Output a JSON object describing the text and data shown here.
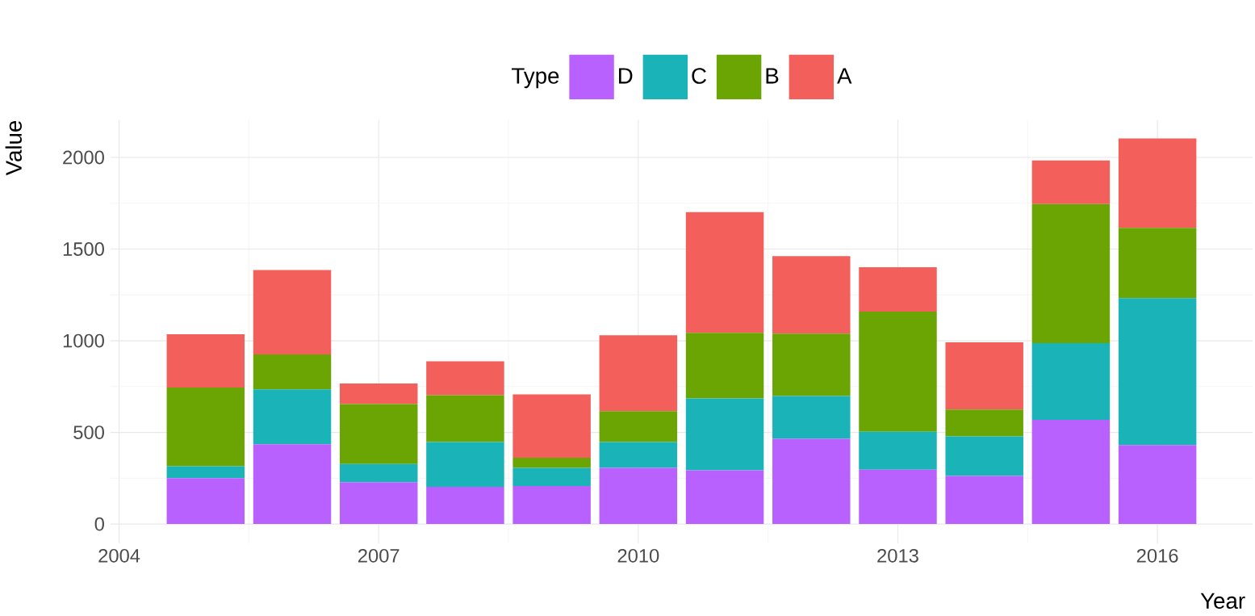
{
  "chart_data": {
    "type": "bar",
    "stacked": true,
    "xlabel": "Year",
    "ylabel": "Value",
    "legend_title": "Type",
    "legend": "top",
    "grid": true,
    "x": [
      2005,
      2006,
      2007,
      2008,
      2009,
      2010,
      2011,
      2012,
      2013,
      2014,
      2015,
      2016
    ],
    "xlim": [
      2003.9,
      2017.1
    ],
    "xticks": [
      2004,
      2007,
      2010,
      2013,
      2016
    ],
    "ylim": [
      -105,
      2205
    ],
    "yticks": [
      0,
      500,
      1000,
      1500,
      2000
    ],
    "series": [
      {
        "name": "D",
        "color": "#b961ff",
        "values": [
          250,
          435,
          228,
          203,
          207,
          306,
          293,
          465,
          297,
          263,
          569,
          431
        ]
      },
      {
        "name": "C",
        "color": "#19b3b8",
        "values": [
          65,
          300,
          100,
          245,
          99,
          142,
          392,
          233,
          207,
          215,
          418,
          802
        ]
      },
      {
        "name": "B",
        "color": "#6aa504",
        "values": [
          430,
          190,
          327,
          255,
          56,
          168,
          358,
          341,
          655,
          147,
          759,
          383
        ]
      },
      {
        "name": "A",
        "color": "#f35f5a",
        "values": [
          290,
          460,
          112,
          185,
          345,
          414,
          659,
          422,
          242,
          366,
          237,
          487
        ]
      }
    ]
  }
}
